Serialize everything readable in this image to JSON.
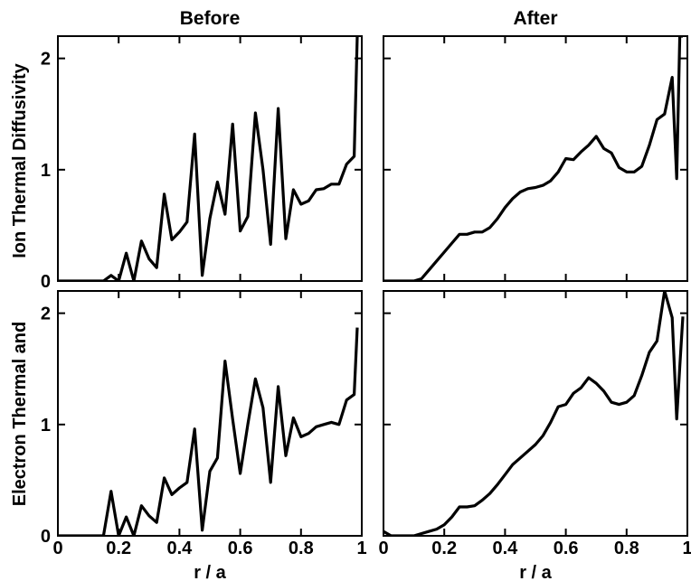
{
  "figure": {
    "columns": [
      "Before",
      "After"
    ],
    "ylabel_top": "Ion Thermal Diffusivity",
    "ylabel_bottom": "Electron Thermal  and",
    "xlabel": "r / a"
  },
  "chart_data": [
    {
      "type": "line",
      "panel": "top-left",
      "title": "Before",
      "ylabel": "Ion Thermal Diffusivity",
      "xlabel": "",
      "xlim": [
        0,
        1
      ],
      "ylim": [
        0,
        2.2
      ],
      "xticks": [
        0,
        0.2,
        0.4,
        0.6,
        0.8,
        1
      ],
      "yticks": [
        0,
        1,
        2
      ],
      "ytick_labels": [
        "0",
        "1",
        "2"
      ],
      "xtick_labels": [],
      "series": [
        {
          "x": [
            0,
            0.025,
            0.05,
            0.075,
            0.1,
            0.125,
            0.15,
            0.175,
            0.2,
            0.225,
            0.25,
            0.275,
            0.3,
            0.325,
            0.35,
            0.375,
            0.4,
            0.425,
            0.45,
            0.475,
            0.5,
            0.525,
            0.55,
            0.575,
            0.6,
            0.625,
            0.65,
            0.675,
            0.7,
            0.725,
            0.75,
            0.775,
            0.8,
            0.825,
            0.85,
            0.875,
            0.9,
            0.925,
            0.95,
            0.975,
            0.985
          ],
          "y": [
            0,
            0,
            0,
            0,
            0,
            0,
            0,
            0.05,
            0,
            0.25,
            0,
            0.36,
            0.2,
            0.12,
            0.78,
            0.37,
            0.44,
            0.53,
            1.32,
            0.05,
            0.56,
            0.89,
            0.6,
            1.41,
            0.45,
            0.58,
            1.51,
            1.0,
            0.33,
            1.55,
            0.38,
            0.82,
            0.69,
            0.72,
            0.82,
            0.83,
            0.87,
            0.87,
            1.05,
            1.12,
            2.2
          ]
        }
      ]
    },
    {
      "type": "line",
      "panel": "top-right",
      "title": "After",
      "ylabel": "",
      "xlabel": "",
      "xlim": [
        0,
        1
      ],
      "ylim": [
        0,
        2.2
      ],
      "xticks": [
        0,
        0.2,
        0.4,
        0.6,
        0.8,
        1
      ],
      "yticks": [
        0,
        1,
        2
      ],
      "ytick_labels": [],
      "xtick_labels": [],
      "series": [
        {
          "x": [
            0,
            0.025,
            0.05,
            0.075,
            0.1,
            0.125,
            0.15,
            0.175,
            0.2,
            0.225,
            0.25,
            0.275,
            0.3,
            0.325,
            0.35,
            0.375,
            0.4,
            0.425,
            0.45,
            0.475,
            0.5,
            0.525,
            0.55,
            0.575,
            0.6,
            0.625,
            0.65,
            0.675,
            0.7,
            0.725,
            0.75,
            0.775,
            0.8,
            0.825,
            0.85,
            0.875,
            0.9,
            0.925,
            0.95,
            0.965,
            0.975,
            0.985
          ],
          "y": [
            0,
            0,
            0,
            0,
            0,
            0.02,
            0.1,
            0.18,
            0.26,
            0.34,
            0.42,
            0.42,
            0.44,
            0.44,
            0.48,
            0.56,
            0.66,
            0.74,
            0.8,
            0.83,
            0.84,
            0.86,
            0.9,
            0.98,
            1.1,
            1.09,
            1.16,
            1.22,
            1.3,
            1.19,
            1.15,
            1.02,
            0.98,
            0.98,
            1.03,
            1.22,
            1.45,
            1.5,
            1.83,
            0.92,
            2.2,
            2.2
          ]
        }
      ]
    },
    {
      "type": "line",
      "panel": "bottom-left",
      "title": "",
      "ylabel": "Electron Thermal  and",
      "xlabel": "r / a",
      "xlim": [
        0,
        1
      ],
      "ylim": [
        0,
        2.2
      ],
      "xticks": [
        0,
        0.2,
        0.4,
        0.6,
        0.8,
        1
      ],
      "yticks": [
        0,
        1,
        2
      ],
      "ytick_labels": [
        "0",
        "1",
        "2"
      ],
      "xtick_labels": [
        "0",
        "0.2",
        "0.4",
        "0.6",
        "0.8",
        "1"
      ],
      "series": [
        {
          "x": [
            0,
            0.025,
            0.05,
            0.075,
            0.1,
            0.125,
            0.15,
            0.175,
            0.2,
            0.225,
            0.25,
            0.275,
            0.3,
            0.325,
            0.35,
            0.375,
            0.4,
            0.425,
            0.45,
            0.475,
            0.5,
            0.525,
            0.55,
            0.575,
            0.6,
            0.625,
            0.65,
            0.675,
            0.7,
            0.725,
            0.75,
            0.775,
            0.8,
            0.825,
            0.85,
            0.875,
            0.9,
            0.925,
            0.95,
            0.975,
            0.985
          ],
          "y": [
            0,
            0,
            0,
            0,
            0,
            0,
            0,
            0.4,
            0,
            0.17,
            0,
            0.27,
            0.18,
            0.12,
            0.52,
            0.37,
            0.43,
            0.48,
            0.96,
            0.05,
            0.58,
            0.7,
            1.57,
            1.05,
            0.56,
            1.0,
            1.41,
            1.15,
            0.48,
            1.34,
            0.72,
            1.06,
            0.89,
            0.92,
            0.98,
            1.0,
            1.02,
            1.0,
            1.22,
            1.27,
            1.87
          ]
        }
      ]
    },
    {
      "type": "line",
      "panel": "bottom-right",
      "title": "",
      "ylabel": "",
      "xlabel": "r / a",
      "xlim": [
        0,
        1
      ],
      "ylim": [
        0,
        2.2
      ],
      "xticks": [
        0,
        0.2,
        0.4,
        0.6,
        0.8,
        1
      ],
      "yticks": [
        0,
        1,
        2
      ],
      "ytick_labels": [],
      "xtick_labels": [
        "0",
        "0.2",
        "0.4",
        "0.6",
        "0.8",
        "1"
      ],
      "series": [
        {
          "x": [
            0,
            0.025,
            0.05,
            0.075,
            0.1,
            0.125,
            0.15,
            0.175,
            0.2,
            0.225,
            0.25,
            0.275,
            0.3,
            0.325,
            0.35,
            0.375,
            0.4,
            0.425,
            0.45,
            0.475,
            0.5,
            0.525,
            0.55,
            0.575,
            0.6,
            0.625,
            0.65,
            0.675,
            0.7,
            0.725,
            0.75,
            0.775,
            0.8,
            0.825,
            0.85,
            0.875,
            0.9,
            0.925,
            0.95,
            0.965,
            0.975,
            0.985
          ],
          "y": [
            0.04,
            0,
            0,
            0,
            0,
            0.02,
            0.04,
            0.06,
            0.1,
            0.17,
            0.26,
            0.26,
            0.27,
            0.32,
            0.38,
            0.46,
            0.55,
            0.64,
            0.7,
            0.76,
            0.82,
            0.9,
            1.02,
            1.16,
            1.18,
            1.28,
            1.33,
            1.42,
            1.37,
            1.3,
            1.2,
            1.18,
            1.2,
            1.26,
            1.44,
            1.65,
            1.75,
            2.2,
            1.96,
            1.05,
            1.52,
            1.97
          ]
        }
      ]
    }
  ]
}
